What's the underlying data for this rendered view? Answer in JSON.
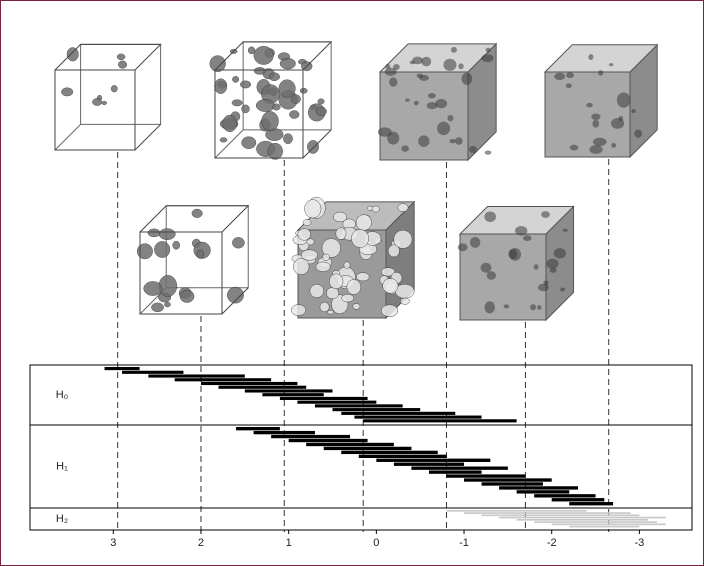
{
  "chart_data": {
    "type": "barcode",
    "xlim": [
      3.95,
      -3.6
    ],
    "xticks": [
      3,
      2,
      1,
      0,
      -1,
      -2,
      -3
    ],
    "thresholds": [
      2.95,
      2.0,
      1.05,
      0.15,
      -0.8,
      -1.7,
      -2.65
    ],
    "series": [
      {
        "name": "H₀",
        "color": "#000000",
        "births": [
          3.1,
          2.9,
          2.6,
          2.3,
          2.0,
          1.8,
          1.5,
          1.3,
          1.1,
          0.9,
          0.7,
          0.5,
          0.4,
          0.25,
          0.15
        ],
        "deaths": [
          2.7,
          2.2,
          1.5,
          1.2,
          0.9,
          0.8,
          0.5,
          0.6,
          0.1,
          0.0,
          -0.3,
          -0.5,
          -0.9,
          -1.2,
          -1.6
        ]
      },
      {
        "name": "H₁",
        "color": "#000000",
        "births": [
          1.6,
          1.4,
          1.2,
          1.0,
          0.8,
          0.6,
          0.4,
          0.2,
          0.0,
          -0.2,
          -0.4,
          -0.6,
          -0.8,
          -1.0,
          -1.2,
          -1.4,
          -1.6,
          -1.8,
          -2.0,
          -2.2
        ],
        "deaths": [
          1.1,
          0.7,
          0.3,
          0.1,
          -0.2,
          -0.4,
          -0.7,
          -0.8,
          -1.3,
          -1.0,
          -1.5,
          -1.2,
          -1.7,
          -2.0,
          -1.9,
          -2.3,
          -2.2,
          -2.5,
          -2.6,
          -2.7
        ]
      },
      {
        "name": "H₂",
        "color": "#c8c8c8",
        "births": [
          -0.8,
          -1.0,
          -1.2,
          -1.4,
          -1.6,
          -1.8,
          -2.0,
          -2.2
        ],
        "deaths": [
          -2.4,
          -2.9,
          -3.0,
          -3.3,
          -3.1,
          -3.2,
          -3.3,
          -3.0
        ]
      }
    ]
  }
}
